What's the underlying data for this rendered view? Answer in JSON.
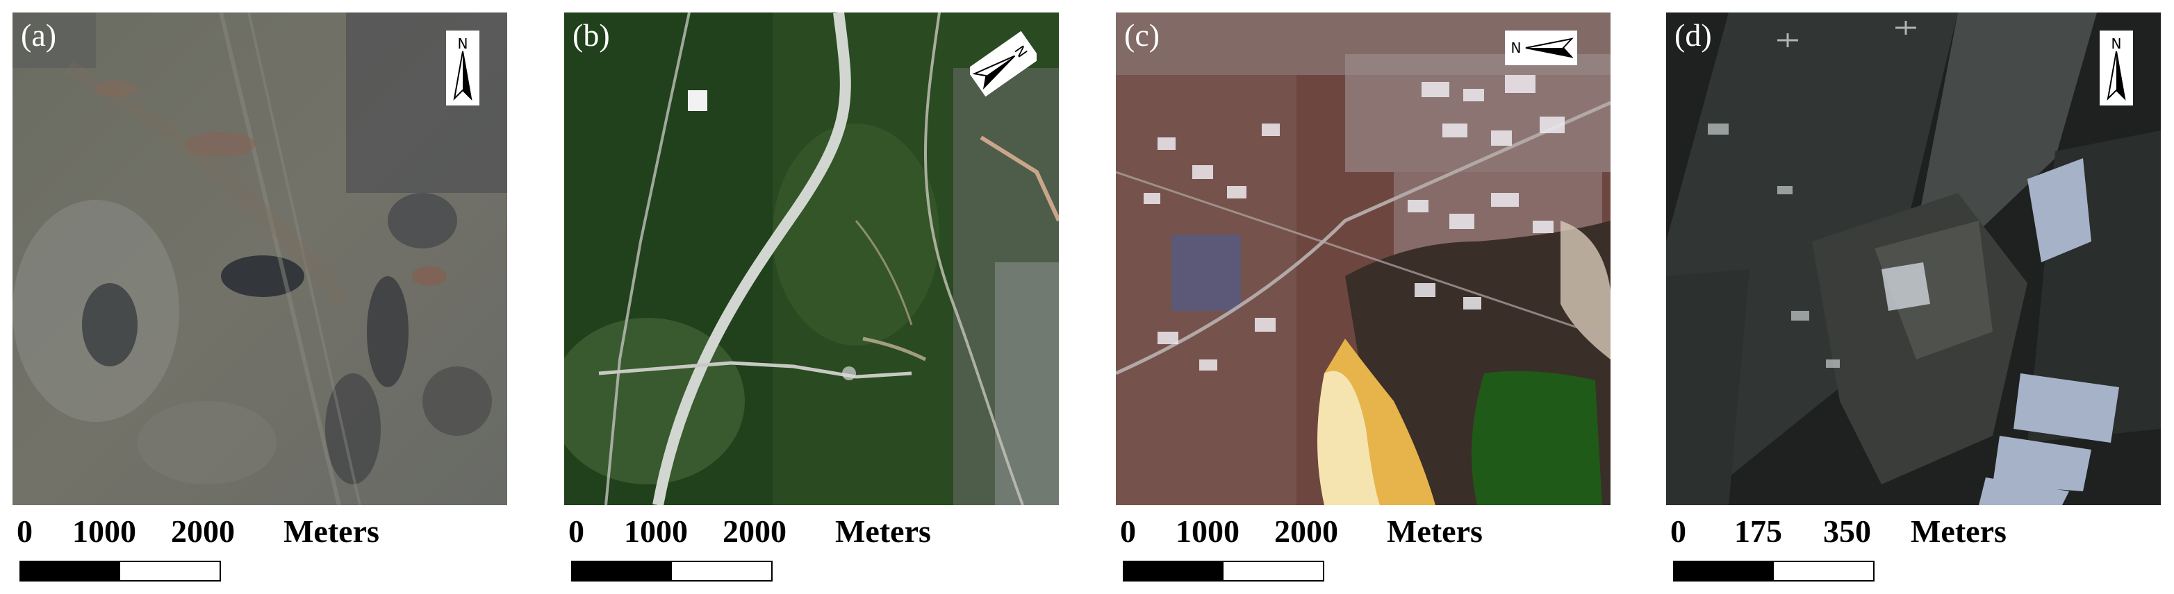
{
  "panels": [
    {
      "label": "(a)",
      "north": "N",
      "north_icon": "north-arrow-icon",
      "scale": {
        "ticks": [
          "0",
          "1000",
          "2000"
        ],
        "unit": "Meters"
      }
    },
    {
      "label": "(b)",
      "north": "N",
      "north_icon": "north-arrow-icon",
      "scale": {
        "ticks": [
          "0",
          "1000",
          "2000"
        ],
        "unit": "Meters"
      }
    },
    {
      "label": "(c)",
      "north": "N",
      "north_icon": "north-arrow-icon",
      "scale": {
        "ticks": [
          "0",
          "1000",
          "2000"
        ],
        "unit": "Meters"
      }
    },
    {
      "label": "(d)",
      "north": "N",
      "north_icon": "north-arrow-icon",
      "scale": {
        "ticks": [
          "0",
          "175",
          "350"
        ],
        "unit": "Meters"
      }
    }
  ]
}
